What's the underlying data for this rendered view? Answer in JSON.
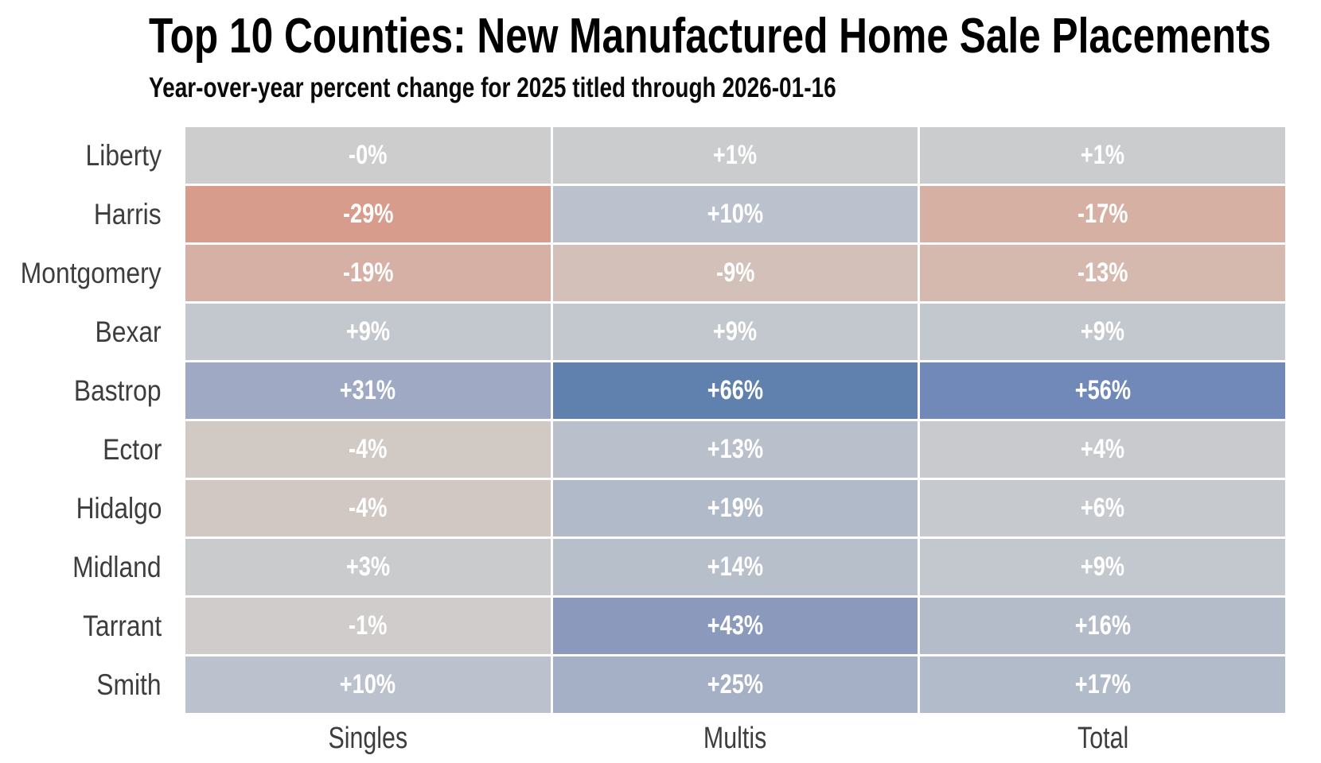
{
  "chart_data": {
    "type": "heatmap",
    "title": "Top 10 Counties: New Manufactured Home Sale Placements",
    "subtitle": "Year-over-year percent change for 2025 titled through 2026-01-16",
    "columns": [
      "Singles",
      "Multis",
      "Total"
    ],
    "value_unit": "year-over-year percent change",
    "value_domain": [
      -29,
      66
    ],
    "legend": "none",
    "grid": "off",
    "rows": [
      {
        "county": "Liberty",
        "cells": [
          {
            "text": "-0%",
            "value": 0,
            "color": "#cdcdcd"
          },
          {
            "text": "+1%",
            "value": 1,
            "color": "#cbcccd"
          },
          {
            "text": "+1%",
            "value": 1,
            "color": "#cbcccd"
          }
        ]
      },
      {
        "county": "Harris",
        "cells": [
          {
            "text": "-29%",
            "value": -29,
            "color": "#d89c8c"
          },
          {
            "text": "+10%",
            "value": 10,
            "color": "#bcc2cd"
          },
          {
            "text": "-17%",
            "value": -17,
            "color": "#d7b0a4"
          }
        ]
      },
      {
        "county": "Montgomery",
        "cells": [
          {
            "text": "-19%",
            "value": -19,
            "color": "#d6b0a5"
          },
          {
            "text": "-9%",
            "value": -9,
            "color": "#d3c1b9"
          },
          {
            "text": "-13%",
            "value": -13,
            "color": "#d5b9af"
          }
        ]
      },
      {
        "county": "Bexar",
        "cells": [
          {
            "text": "+9%",
            "value": 9,
            "color": "#c3c7ce"
          },
          {
            "text": "+9%",
            "value": 9,
            "color": "#c3c7ce"
          },
          {
            "text": "+9%",
            "value": 9,
            "color": "#c3c7ce"
          }
        ]
      },
      {
        "county": "Bastrop",
        "cells": [
          {
            "text": "+31%",
            "value": 31,
            "color": "#9fa9c4"
          },
          {
            "text": "+66%",
            "value": 66,
            "color": "#6080ae"
          },
          {
            "text": "+56%",
            "value": 56,
            "color": "#7189b8"
          }
        ]
      },
      {
        "county": "Ector",
        "cells": [
          {
            "text": "-4%",
            "value": -4,
            "color": "#d1c9c4"
          },
          {
            "text": "+13%",
            "value": 13,
            "color": "#b9c0cc"
          },
          {
            "text": "+4%",
            "value": 4,
            "color": "#c8cacd"
          }
        ]
      },
      {
        "county": "Hidalgo",
        "cells": [
          {
            "text": "-4%",
            "value": -4,
            "color": "#d1c8c4"
          },
          {
            "text": "+19%",
            "value": 19,
            "color": "#b1bac9"
          },
          {
            "text": "+6%",
            "value": 6,
            "color": "#c6c9cd"
          }
        ]
      },
      {
        "county": "Midland",
        "cells": [
          {
            "text": "+3%",
            "value": 3,
            "color": "#c9cbcd"
          },
          {
            "text": "+14%",
            "value": 14,
            "color": "#b7bfcb"
          },
          {
            "text": "+9%",
            "value": 9,
            "color": "#c3c7ce"
          }
        ]
      },
      {
        "county": "Tarrant",
        "cells": [
          {
            "text": "-1%",
            "value": -1,
            "color": "#cfcccb"
          },
          {
            "text": "+43%",
            "value": 43,
            "color": "#8b99bd"
          },
          {
            "text": "+16%",
            "value": 16,
            "color": "#b4bcca"
          }
        ]
      },
      {
        "county": "Smith",
        "cells": [
          {
            "text": "+10%",
            "value": 10,
            "color": "#bcc2cd"
          },
          {
            "text": "+25%",
            "value": 25,
            "color": "#a5b0c6"
          },
          {
            "text": "+17%",
            "value": 17,
            "color": "#b2bbc9"
          }
        ]
      }
    ],
    "colors": {
      "negative_extreme": "#d89c8c",
      "neutral": "#cdcdcd",
      "positive_extreme": "#6080ae",
      "cell_text": "#ffffff",
      "axis_label_text": "#3d3d3d",
      "title_text": "#000000"
    }
  }
}
